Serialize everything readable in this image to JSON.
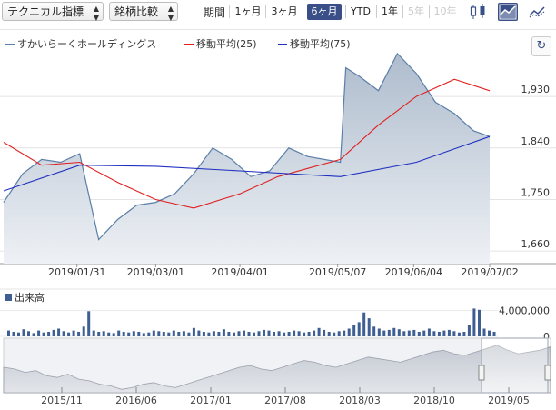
{
  "toolbar": {
    "indicator_select": "テクニカル指標",
    "compare_select": "銘柄比較",
    "period_label": "期間",
    "periods": [
      "1ヶ月",
      "3ヶ月",
      "6ヶ月",
      "YTD",
      "1年",
      "5年",
      "10年"
    ],
    "active_period": "6ヶ月",
    "disabled_periods": [
      "5年",
      "10年"
    ],
    "icons": [
      "candlestick-icon",
      "area-chart-icon"
    ]
  },
  "legend": {
    "series": [
      {
        "name": "すかいらーくホールディングス",
        "color": "#5b7fa8"
      },
      {
        "name": "移動平均(25)",
        "color": "#e02020"
      },
      {
        "name": "移動平均(75)",
        "color": "#2030c0"
      }
    ]
  },
  "volume_label": "出来高",
  "colors": {
    "price_fill_top": "#aebccd",
    "price_line": "#5b7fa8",
    "ma25": "#e02020",
    "ma75": "#2030c0",
    "volume": "#3f5f93",
    "active": "#3a4f88"
  },
  "chart_data": [
    {
      "type": "area",
      "title": "すかいらーくホールディングス",
      "x_ticks": [
        "2019/01/31",
        "2019/03/01",
        "2019/04/01",
        "2019/05/07",
        "2019/06/04",
        "2019/07/02"
      ],
      "y_ticks": [
        1660,
        1750,
        1840,
        1930
      ],
      "ylim": [
        1638,
        2000
      ],
      "x_range": [
        "2019/01/04",
        "2019/07/05"
      ],
      "grid": true,
      "legend_position": "top-left",
      "series": [
        {
          "name": "すかいらーくホールディングス",
          "x": [
            "2019/01/04",
            "2019/01/11",
            "2019/01/18",
            "2019/01/25",
            "2019/02/01",
            "2019/02/08",
            "2019/02/12",
            "2019/02/15",
            "2019/02/22",
            "2019/03/01",
            "2019/03/08",
            "2019/03/15",
            "2019/03/22",
            "2019/03/29",
            "2019/04/05",
            "2019/04/12",
            "2019/04/19",
            "2019/04/26",
            "2019/05/08",
            "2019/05/10",
            "2019/05/15",
            "2019/05/22",
            "2019/05/29",
            "2019/06/05",
            "2019/06/12",
            "2019/06/19",
            "2019/06/26",
            "2019/07/02"
          ],
          "values": [
            1745,
            1795,
            1820,
            1815,
            1830,
            1680,
            1700,
            1715,
            1740,
            1745,
            1760,
            1795,
            1840,
            1820,
            1790,
            1800,
            1840,
            1825,
            1815,
            1980,
            1965,
            1940,
            2005,
            1970,
            1920,
            1900,
            1870,
            1860
          ]
        },
        {
          "name": "移動平均(25)",
          "x": [
            "2019/01/04",
            "2019/01/18",
            "2019/02/01",
            "2019/02/15",
            "2019/03/01",
            "2019/03/15",
            "2019/04/01",
            "2019/04/15",
            "2019/05/08",
            "2019/05/22",
            "2019/06/05",
            "2019/06/19",
            "2019/07/02"
          ],
          "values": [
            1850,
            1810,
            1815,
            1780,
            1750,
            1735,
            1760,
            1790,
            1820,
            1880,
            1930,
            1960,
            1940
          ]
        },
        {
          "name": "移動平均(75)",
          "x": [
            "2019/01/04",
            "2019/02/01",
            "2019/03/01",
            "2019/04/01",
            "2019/05/08",
            "2019/06/05",
            "2019/07/02"
          ],
          "values": [
            1765,
            1810,
            1808,
            1800,
            1790,
            1815,
            1860
          ]
        }
      ]
    },
    {
      "type": "bar",
      "title": "出来高",
      "y_ticks": [
        "4,000,000",
        "0"
      ],
      "ylim": [
        0,
        4500000
      ],
      "values": [
        900000,
        700000,
        600000,
        1100000,
        800000,
        500000,
        900000,
        600000,
        700000,
        1000000,
        1200000,
        800000,
        600000,
        900000,
        700000,
        1500000,
        3900000,
        900000,
        700000,
        800000,
        600000,
        500000,
        900000,
        700000,
        600000,
        800000,
        700000,
        500000,
        600000,
        900000,
        800000,
        700000,
        600000,
        900000,
        700000,
        800000,
        600000,
        1300000,
        900000,
        700000,
        600000,
        800000,
        700000,
        1100000,
        700000,
        600000,
        800000,
        900000,
        700000,
        600000,
        800000,
        1000000,
        900000,
        700000,
        800000,
        600000,
        700000,
        900000,
        800000,
        600000,
        700000,
        900000,
        1300000,
        1000000,
        700000,
        600000,
        800000,
        900000,
        1200000,
        1700000,
        2200000,
        3700000,
        2800000,
        1500000,
        1200000,
        900000,
        1000000,
        1300000,
        1100000,
        800000,
        900000,
        1000000,
        700000,
        900000,
        1200000,
        800000,
        700000,
        900000,
        1000000,
        800000,
        600000,
        700000,
        1800000,
        4300000,
        4100000,
        1200000,
        900000,
        700000
      ]
    },
    {
      "type": "area",
      "title": "",
      "x_ticks": [
        "2015/11",
        "2016/06",
        "2017/01",
        "2017/08",
        "2018/03",
        "2018/10",
        "2019/05"
      ],
      "values": [
        1700,
        1680,
        1640,
        1660,
        1600,
        1580,
        1620,
        1560,
        1540,
        1500,
        1480,
        1440,
        1460,
        1500,
        1520,
        1480,
        1460,
        1500,
        1540,
        1580,
        1620,
        1660,
        1700,
        1720,
        1680,
        1660,
        1700,
        1740,
        1780,
        1760,
        1720,
        1700,
        1740,
        1780,
        1820,
        1800,
        1780,
        1760,
        1800,
        1840,
        1880,
        1900,
        1860,
        1840,
        1880,
        1920,
        1960,
        1900,
        1860,
        1880,
        1900,
        1940
      ]
    }
  ]
}
